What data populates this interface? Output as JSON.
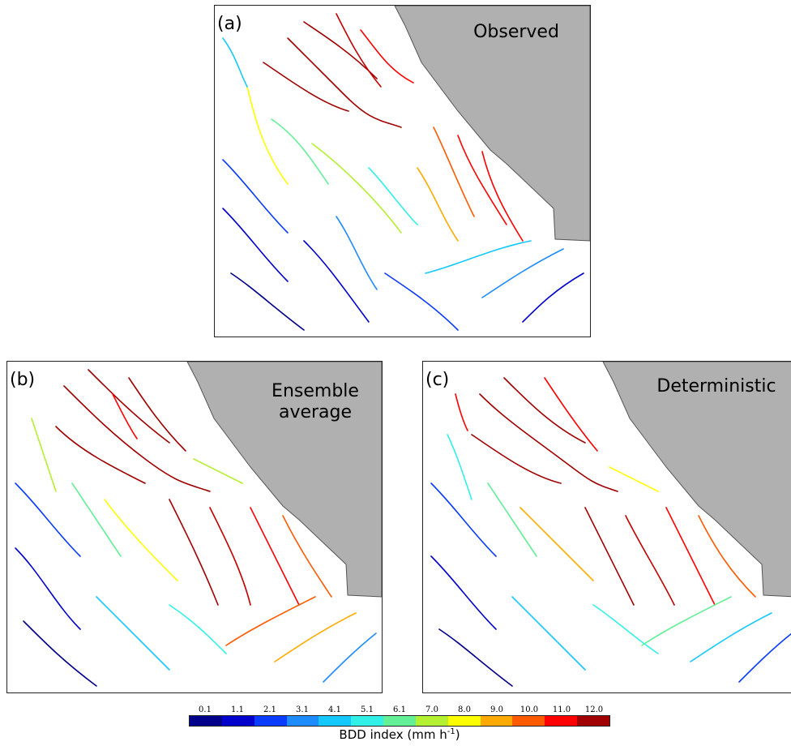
{
  "panels": [
    {
      "id": "a",
      "letter": "(a)",
      "title_lines": [
        "Observed"
      ],
      "sea_color": "#b0b0b0"
    },
    {
      "id": "b",
      "letter": "(b)",
      "title_lines": [
        "Ensemble",
        "average"
      ],
      "sea_color": "#b0b0b0"
    },
    {
      "id": "c",
      "letter": "(c)",
      "title_lines": [
        "Deterministic"
      ],
      "sea_color": "#b0b0b0"
    }
  ],
  "colorbar": {
    "ticks": [
      "0.1",
      "1.1",
      "2.1",
      "3.1",
      "4.1",
      "5.1",
      "6.1",
      "7.0",
      "8.0",
      "9.0",
      "10.0",
      "11.0",
      "12.0"
    ],
    "colors": [
      "#00008b",
      "#0000cd",
      "#0a3cff",
      "#1e8cff",
      "#14c8ff",
      "#32f0e6",
      "#64f096",
      "#b4f032",
      "#ffff00",
      "#ffaa00",
      "#ff5a00",
      "#ff0000",
      "#a00000"
    ],
    "label": "BDD index (mm h",
    "label_sup": "-1",
    "label_end": ")"
  }
}
